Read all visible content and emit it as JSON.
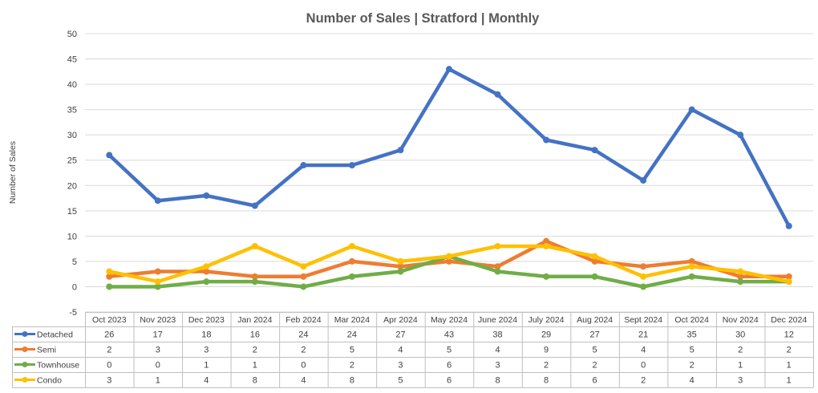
{
  "chart_data": {
    "type": "line",
    "title": "Number of Sales | Stratford | Monthly",
    "ylabel": "Number of Sales",
    "xlabel": "",
    "ylim": [
      -5,
      50
    ],
    "yticks": [
      -5,
      0,
      5,
      10,
      15,
      20,
      25,
      30,
      35,
      40,
      45,
      50
    ],
    "grid": true,
    "legend": "data-table-below",
    "categories": [
      "Oct 2023",
      "Nov 2023",
      "Dec 2023",
      "Jan 2024",
      "Feb 2024",
      "Mar 2024",
      "Apr 2024",
      "May 2024",
      "June 2024",
      "July 2024",
      "Aug 2024",
      "Sept 2024",
      "Oct 2024",
      "Nov 2024",
      "Dec 2024"
    ],
    "series": [
      {
        "name": "Detached",
        "color": "#4472C4",
        "values": [
          26,
          17,
          18,
          16,
          24,
          24,
          27,
          43,
          38,
          29,
          27,
          21,
          35,
          30,
          12
        ]
      },
      {
        "name": "Semi",
        "color": "#ED7D31",
        "values": [
          2,
          3,
          3,
          2,
          2,
          5,
          4,
          5,
          4,
          9,
          5,
          4,
          5,
          2,
          2
        ]
      },
      {
        "name": "Townhouse",
        "color": "#70AD47",
        "values": [
          0,
          0,
          1,
          1,
          0,
          2,
          3,
          6,
          3,
          2,
          2,
          0,
          2,
          1,
          1
        ]
      },
      {
        "name": "Condo",
        "color": "#FFC000",
        "values": [
          3,
          1,
          4,
          8,
          4,
          8,
          5,
          6,
          8,
          8,
          6,
          2,
          4,
          3,
          1
        ]
      }
    ]
  }
}
